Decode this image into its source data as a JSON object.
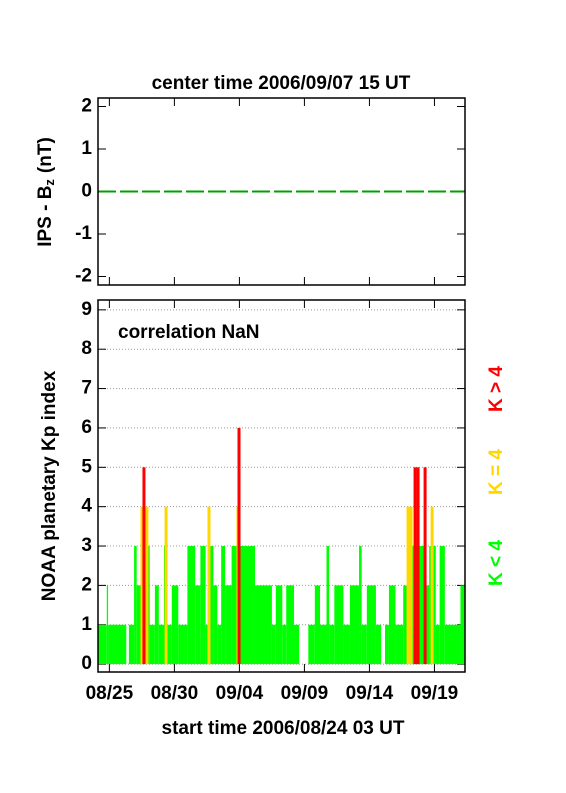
{
  "chart_data": [
    {
      "type": "line",
      "title": "center time 2006/09/07 15 UT",
      "ylabel": [
        "IPS - B",
        "z",
        "(nT)"
      ],
      "xlim": [
        0.125,
        28.35
      ],
      "ylim": [
        -2.2,
        2.2
      ],
      "yticks": [
        -2,
        -1,
        0,
        1,
        2
      ],
      "xticks": [
        1,
        6,
        11,
        16,
        21,
        26
      ],
      "series": [
        {
          "color": "#00a000",
          "x": [
            0.125,
            28.35
          ],
          "values": [
            0,
            0
          ]
        }
      ]
    },
    {
      "type": "bar",
      "annotation": "correlation NaN",
      "ylabel": "NOAA planetary Kp index",
      "xlabel": "start time 2006/08/24 03 UT",
      "grid": true,
      "xlim": [
        0.125,
        28.35
      ],
      "ylim": [
        -0.2,
        9.25
      ],
      "yticks": [
        0,
        1,
        2,
        3,
        4,
        5,
        6,
        7,
        8,
        9
      ],
      "xticks": [
        {
          "value": 1,
          "label": "08/25"
        },
        {
          "value": 6,
          "label": "08/30"
        },
        {
          "value": 11,
          "label": "09/04"
        },
        {
          "value": 16,
          "label": "09/09"
        },
        {
          "value": 21,
          "label": "09/14"
        },
        {
          "value": 26,
          "label": "09/19"
        }
      ],
      "series": [
        {
          "name": "K < 4",
          "color": "#00ff00",
          "x": [
            0.125,
            0.8,
            0.9,
            2.3,
            2.5,
            2.9,
            3.1,
            3.4,
            3.6,
            3.9,
            4.1,
            4.5,
            4.8,
            5.2,
            5.4,
            5.8,
            6.3,
            7.0,
            7.6,
            8.0,
            8.4,
            8.7,
            9.0,
            9.3,
            9.6,
            9.9,
            10.4,
            12.2,
            13.5,
            13.8,
            14.3,
            14.6,
            15.2,
            15.6,
            16.3,
            16.8,
            17.2,
            17.7,
            17.9,
            18.3,
            19.0,
            19.5,
            20.2,
            20.4,
            20.8,
            21.5,
            21.9,
            22.2,
            22.5,
            23.0,
            23.6,
            24.2,
            25.2,
            25.6,
            26.1,
            26.4,
            26.8,
            28.0
          ],
          "values": [
            1,
            2,
            1,
            0,
            1,
            3,
            2,
            3,
            2,
            3,
            1,
            2,
            1,
            3,
            1,
            2,
            1,
            3,
            2,
            3,
            1,
            3,
            2,
            1,
            3,
            2,
            3,
            2,
            1,
            2,
            1,
            2,
            1,
            0,
            1,
            2,
            1,
            3,
            1,
            2,
            1,
            2,
            3,
            1,
            2,
            1,
            0,
            1,
            2,
            1,
            2,
            3,
            2,
            3,
            1,
            3,
            1,
            2
          ]
        },
        {
          "name": "K = 4",
          "color": "#ffd700",
          "x": [
            3.51,
            3.89,
            5.36,
            8.66,
            10.89,
            23.97,
            24.2,
            25.82
          ],
          "values": [
            4,
            4,
            4,
            4,
            4,
            4,
            4,
            4
          ]
        },
        {
          "name": "K > 4",
          "color": "#ff0000",
          "x": [
            3.66,
            10.97,
            24.51,
            24.74,
            25.28
          ],
          "values": [
            5,
            6,
            5,
            5,
            5
          ]
        }
      ]
    }
  ]
}
